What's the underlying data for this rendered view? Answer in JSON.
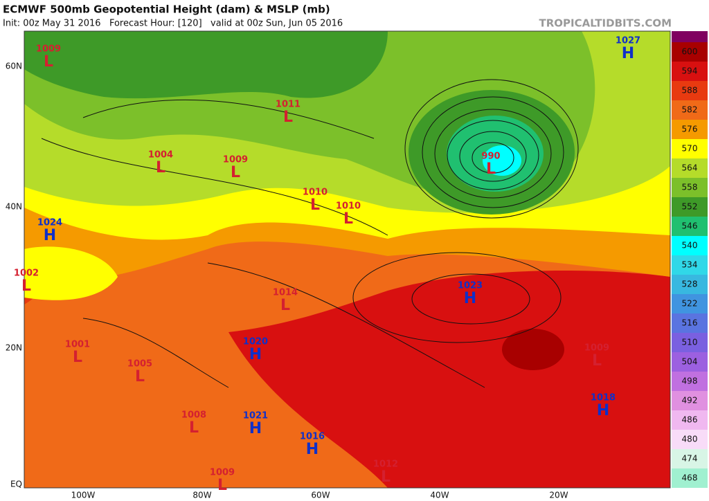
{
  "header": {
    "title": "ECMWF 500mb Geopotential Height (dam) & MSLP (mb)",
    "subtitle": "Init: 00z May 31 2016   Forecast Hour: [120]   valid at 00z Sun, Jun 05 2016",
    "source": "TROPICALTIDBITS.COM"
  },
  "latitude_labels": [
    "60N",
    "40N",
    "20N",
    "EQ"
  ],
  "longitude_labels": [
    "100W",
    "80W",
    "60W",
    "40W",
    "20W"
  ],
  "colorbar": {
    "levels": [
      600,
      594,
      588,
      582,
      576,
      570,
      564,
      558,
      552,
      546,
      540,
      534,
      528,
      522,
      516,
      510,
      504,
      498,
      492,
      486,
      480,
      474,
      468
    ],
    "colors": [
      "#a80000",
      "#d81010",
      "#e83a10",
      "#f06a18",
      "#f59a00",
      "#ffff00",
      "#b5dc2a",
      "#7cc02a",
      "#3e9a28",
      "#20c070",
      "#00ffff",
      "#30d8e8",
      "#38b8e0",
      "#4094e0",
      "#5a74e0",
      "#7a60e0",
      "#9c60e0",
      "#c070e0",
      "#e090e0",
      "#f0b8f0",
      "#f8dcf8",
      "#d8f5e6",
      "#a0f0d0"
    ]
  },
  "pressure_centers": [
    {
      "symbol": "L",
      "value": 1009
    },
    {
      "symbol": "H",
      "value": 1027
    },
    {
      "symbol": "L",
      "value": 1011
    },
    {
      "symbol": "L",
      "value": 1004
    },
    {
      "symbol": "L",
      "value": 1009
    },
    {
      "symbol": "L",
      "value": 990
    },
    {
      "symbol": "L",
      "value": 1010
    },
    {
      "symbol": "L",
      "value": 1010
    },
    {
      "symbol": "H",
      "value": 1024
    },
    {
      "symbol": "L",
      "value": 1002
    },
    {
      "symbol": "L",
      "value": 1014
    },
    {
      "symbol": "H",
      "value": 1023
    },
    {
      "symbol": "H",
      "value": 1020
    },
    {
      "symbol": "L",
      "value": 1009
    },
    {
      "symbol": "L",
      "value": 1001
    },
    {
      "symbol": "L",
      "value": 1005
    },
    {
      "symbol": "H",
      "value": 1018
    },
    {
      "symbol": "L",
      "value": 1008
    },
    {
      "symbol": "H",
      "value": 1021
    },
    {
      "symbol": "H",
      "value": 1016
    },
    {
      "symbol": "L",
      "value": 1012
    },
    {
      "symbol": "L",
      "value": 1009
    }
  ]
}
